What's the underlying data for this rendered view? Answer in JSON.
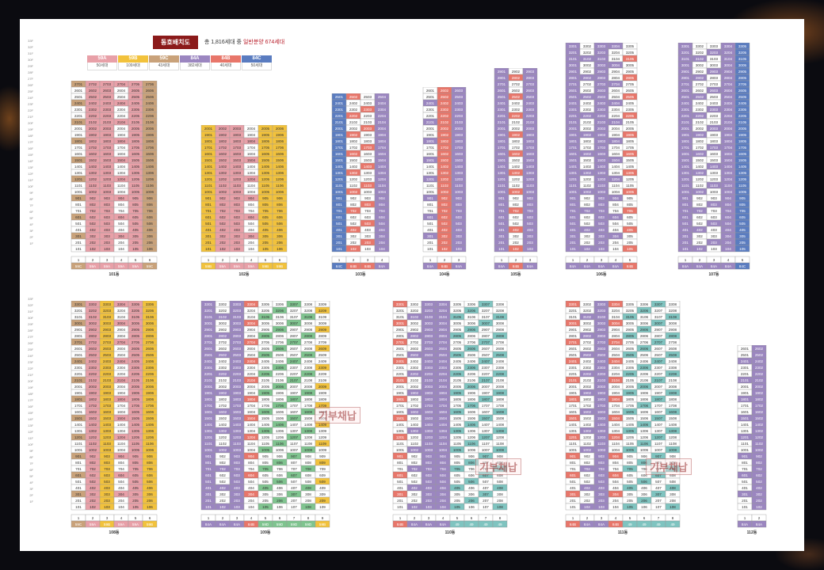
{
  "header": {
    "title": "동호배치도",
    "summary_prefix": "총 1,816세대 중",
    "summary_highlight": "일반분양 674세대"
  },
  "legend": [
    {
      "type": "59A",
      "count": "50세대",
      "color": "#e8a0a8"
    },
    {
      "type": "59B",
      "count": "109세대",
      "color": "#f2c23c"
    },
    {
      "type": "59C",
      "count": "43세대",
      "color": "#c9a27a"
    },
    {
      "type": "84A",
      "count": "382세대",
      "color": "#9b86c0"
    },
    {
      "type": "84B",
      "count": "40세대",
      "color": "#e8766a"
    },
    {
      "type": "84C",
      "count": "50세대",
      "color": "#5a7cc0"
    }
  ],
  "colors": {
    "59A": "#e8a0a8",
    "59B": "#f2c23c",
    "59C": "#c9a27a",
    "84A": "#9b86c0",
    "84B": "#e8766a",
    "84C": "#5a7cc0",
    "59D": "#7fc48f",
    "49": "#7fc4c0",
    "none": "#ffffff"
  },
  "floors_top": [
    "33F",
    "32F",
    "31F",
    "30F",
    "29F",
    "28F",
    "27F",
    "26F",
    "25F",
    "24F",
    "23F",
    "22F",
    "21F",
    "20F",
    "19F",
    "18F",
    "17F",
    "16F",
    "15F",
    "14F",
    "13F",
    "12F",
    "11F",
    "10F",
    "9F",
    "8F",
    "7F",
    "6F",
    "5F",
    "4F",
    "3F",
    "2F",
    "1F"
  ],
  "stamp_text": "기부채납",
  "buildings": [
    {
      "name": "101동",
      "floors": 27,
      "lines": [
        "59C",
        "59A",
        "59A",
        "59A",
        "59A",
        "59C"
      ],
      "sold": [
        0,
        1,
        1,
        0,
        1,
        1
      ]
    },
    {
      "name": "102동",
      "floors": 20,
      "lines": [
        "59B",
        "59A",
        "59A",
        "59A",
        "59B",
        "59B"
      ],
      "sold": [
        1,
        1,
        1,
        0,
        1,
        1
      ]
    },
    {
      "name": "103동",
      "floors": 25,
      "lines": [
        "84C",
        "84B",
        "84B",
        "84A"
      ],
      "sold": [
        1,
        0,
        0,
        1
      ]
    },
    {
      "name": "104동",
      "floors": 26,
      "lines": [
        "84A",
        "84B",
        "84A"
      ],
      "sold": [
        0,
        1,
        1
      ]
    },
    {
      "name": "105동",
      "floors": 29,
      "lines": [
        "84A",
        "84B",
        "84A"
      ],
      "sold": [
        1,
        0,
        1
      ]
    },
    {
      "name": "106동",
      "floors": 33,
      "lines": [
        "84A",
        "84A",
        "84A",
        "84A",
        "84B"
      ],
      "sold": [
        1,
        0,
        1,
        0,
        0
      ]
    },
    {
      "name": "107동",
      "floors": 33,
      "lines": [
        "84A",
        "84A",
        "84A",
        "84A",
        "84C"
      ],
      "sold": [
        1,
        0,
        0,
        1,
        1
      ]
    },
    {
      "name": "108동",
      "floors": 33,
      "lines": [
        "59C",
        "59A",
        "59B",
        "59A",
        "59A",
        "59B"
      ],
      "sold": [
        0,
        1,
        1,
        0,
        1,
        1
      ]
    },
    {
      "name": "109동",
      "floors": 33,
      "lines": [
        "84A",
        "84A",
        "84A",
        "84B",
        "59D",
        "59D",
        "59D",
        "59D",
        "59B"
      ],
      "sold": [
        1,
        0,
        1,
        0,
        0,
        0,
        0,
        0,
        0
      ]
    },
    {
      "name": "110동",
      "floors": 33,
      "lines": [
        "84B",
        "84A",
        "84A",
        "84A",
        "49",
        "49",
        "49",
        "49"
      ],
      "sold": [
        0,
        0,
        1,
        1,
        0,
        0,
        0,
        0
      ]
    },
    {
      "name": "111동",
      "floors": 33,
      "lines": [
        "84B",
        "84A",
        "84A",
        "84B",
        "49",
        "49",
        "49",
        "49"
      ],
      "sold": [
        0,
        0,
        1,
        0,
        0,
        0,
        0,
        0
      ]
    },
    {
      "name": "112동",
      "floors": 26,
      "lines": [
        "84A",
        "84A"
      ],
      "sold": [
        0,
        1
      ]
    }
  ]
}
